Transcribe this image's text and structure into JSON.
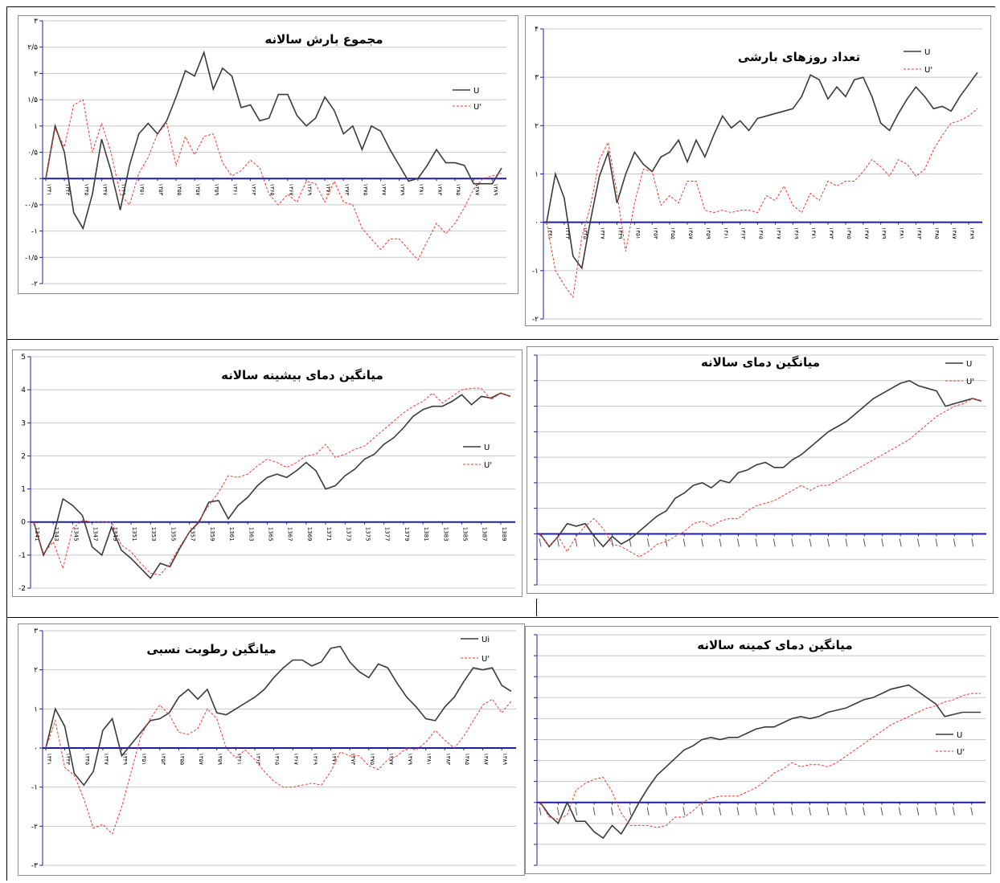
{
  "colors": {
    "u_line": "#3a3a3a",
    "up_line": "#ef3b2c",
    "zero_axis": "#1f1f9e",
    "grid": "#c8c8c8",
    "axis": "#1f1f9e"
  },
  "chart_data": [
    {
      "type": "line",
      "title": "مجموع بارش سالانه",
      "ylim": [
        -2,
        3
      ],
      "yticks": [
        "۳",
        "۲/۵",
        "۲",
        "۱/۵",
        "۱",
        "۰/۵",
        "۰",
        "-۰/۵",
        "-۱",
        "-۱/۵",
        "-۲"
      ],
      "yvalues": [
        3,
        2.5,
        2,
        1.5,
        1,
        0.5,
        0,
        -0.5,
        -1,
        -1.5,
        -2
      ],
      "grid": true,
      "legend_position": "top-right",
      "xticks": [
        "۱۳۴۱",
        "۱۳۴۳",
        "۱۳۴۵",
        "۱۳۴۷",
        "۱۳۴۹",
        "۱۳۵۱",
        "۱۳۵۳",
        "۱۳۵۵",
        "۱۳۵۷",
        "۱۳۵۹",
        "۱۳۶۱",
        "۱۳۶۳",
        "۱۳۶۵",
        "۱۳۶۷",
        "۱۳۶۹",
        "۱۳۷۱",
        "۱۳۷۳",
        "۱۳۷۵",
        "۱۳۷۷",
        "۱۳۷۹",
        "۱۳۸۱",
        "۱۳۸۳",
        "۱۳۸۵",
        "۱۳۸۷",
        "۱۳۸۹"
      ],
      "series": [
        {
          "name": "U",
          "values": [
            0,
            1,
            0.5,
            -0.65,
            -0.95,
            -0.3,
            0.75,
            0.15,
            -0.6,
            0.25,
            0.85,
            1.05,
            0.85,
            1.1,
            1.55,
            2.05,
            1.95,
            2.4,
            1.7,
            2.1,
            1.95,
            1.35,
            1.4,
            1.1,
            1.15,
            1.6,
            1.6,
            1.2,
            1,
            1.15,
            1.55,
            1.3,
            0.85,
            1,
            0.55,
            1,
            0.9,
            0.55,
            0.25,
            -0.05,
            0,
            0.25,
            0.55,
            0.3,
            0.3,
            0.25,
            -0.1,
            -0.1,
            -0.1,
            0.2
          ]
        },
        {
          "name": "U'",
          "values": [
            0,
            0.95,
            0.6,
            1.4,
            1.5,
            0.5,
            1.05,
            0.5,
            -0.3,
            -0.5,
            0.1,
            0.4,
            0.85,
            1.05,
            0.25,
            0.8,
            0.45,
            0.8,
            0.85,
            0.3,
            0.05,
            0.15,
            0.35,
            0.2,
            -0.3,
            -0.5,
            -0.3,
            -0.45,
            -0.05,
            -0.1,
            -0.45,
            -0.05,
            -0.45,
            -0.5,
            -0.95,
            -1.15,
            -1.35,
            -1.15,
            -1.15,
            -1.35,
            -1.55,
            -1.2,
            -0.85,
            -1.05,
            -0.85,
            -0.55,
            -0.2,
            0,
            0.05,
            0.1
          ]
        }
      ]
    },
    {
      "type": "line",
      "title": "تعداد روزهای بارشی",
      "ylim": [
        -2,
        4
      ],
      "yticks": [
        "۴",
        "۳",
        "۲",
        "۱",
        "۰",
        "-۱",
        "-۲"
      ],
      "yvalues": [
        4,
        3,
        2,
        1,
        0,
        -1,
        -2
      ],
      "grid": true,
      "legend_position": "top-right",
      "xticks": [
        "۱۳۴۱",
        "۱۳۴۳",
        "۱۳۴۵",
        "۱۳۴۷",
        "۱۳۴۹",
        "۱۳۵۱",
        "۱۳۵۳",
        "۱۳۵۵",
        "۱۳۵۷",
        "۱۳۵۹",
        "۱۳۶۱",
        "۱۳۶۳",
        "۱۳۶۵",
        "۱۳۶۷",
        "۱۳۶۹",
        "۱۳۷۱",
        "۱۳۷۳",
        "۱۳۷۵",
        "۱۳۷۷",
        "۱۳۷۹",
        "۱۳۸۱",
        "۱۳۸۳",
        "۱۳۸۵",
        "۱۳۸۷",
        "۱۳۸۹"
      ],
      "series": [
        {
          "name": "U",
          "values": [
            0,
            1,
            0.5,
            -0.7,
            -0.95,
            0.05,
            0.95,
            1.45,
            0.4,
            1,
            1.45,
            1.2,
            1.05,
            1.35,
            1.45,
            1.7,
            1.25,
            1.7,
            1.35,
            1.8,
            2.2,
            1.95,
            2.1,
            1.9,
            2.15,
            2.2,
            2.25,
            2.3,
            2.35,
            2.6,
            3.05,
            2.95,
            2.55,
            2.8,
            2.6,
            2.95,
            3,
            2.6,
            2.05,
            1.9,
            2.25,
            2.55,
            2.8,
            2.6,
            2.35,
            2.4,
            2.3,
            2.6,
            2.85,
            3.1
          ]
        },
        {
          "name": "U'",
          "values": [
            0,
            -1,
            -1.3,
            -1.55,
            -0.3,
            0.35,
            1.3,
            1.65,
            0.6,
            -0.6,
            0.4,
            1.1,
            1.05,
            0.35,
            0.55,
            0.4,
            0.85,
            0.85,
            0.25,
            0.2,
            0.25,
            0.2,
            0.25,
            0.25,
            0.2,
            0.55,
            0.45,
            0.75,
            0.35,
            0.2,
            0.6,
            0.45,
            0.85,
            0.75,
            0.85,
            0.85,
            1.05,
            1.3,
            1.15,
            0.95,
            1.3,
            1.2,
            0.95,
            1.1,
            1.5,
            1.8,
            2.05,
            2.1,
            2.2,
            2.35
          ]
        }
      ]
    },
    {
      "type": "line",
      "title": "میانگین دمای بیشینه سالانه",
      "ylim": [
        -2,
        5
      ],
      "yticks": [
        "5",
        "4",
        "3",
        "2",
        "1",
        "0",
        "-1",
        "-2"
      ],
      "yvalues": [
        5,
        4,
        3,
        2,
        1,
        0,
        -1,
        -2
      ],
      "grid": true,
      "legend_position": "right",
      "xticks": [
        "1341",
        "1343",
        "1345",
        "1347",
        "1349",
        "1351",
        "1353",
        "1355",
        "1357",
        "1359",
        "1361",
        "1363",
        "1365",
        "1367",
        "1369",
        "1371",
        "1373",
        "1375",
        "1377",
        "1379",
        "1381",
        "1383",
        "1385",
        "1387",
        "1389"
      ],
      "series": [
        {
          "name": "U",
          "values": [
            0,
            -1,
            -0.45,
            0.7,
            0.5,
            0.2,
            -0.75,
            -1,
            -0.15,
            -0.85,
            -1.1,
            -1.4,
            -1.7,
            -1.25,
            -1.35,
            -0.8,
            -0.3,
            0,
            0.6,
            0.65,
            0.1,
            0.5,
            0.75,
            1.1,
            1.35,
            1.45,
            1.35,
            1.55,
            1.8,
            1.55,
            1,
            1.1,
            1.4,
            1.6,
            1.9,
            2.05,
            2.35,
            2.55,
            2.85,
            3.2,
            3.4,
            3.5,
            3.5,
            3.65,
            3.85,
            3.55,
            3.8,
            3.75,
            3.9,
            3.8
          ]
        },
        {
          "name": "U'",
          "values": [
            0,
            -0.95,
            -0.6,
            -1.4,
            -0.2,
            0.05,
            0,
            0,
            0,
            -0.7,
            -0.9,
            -1.25,
            -1.55,
            -1.6,
            -1.25,
            -0.75,
            -0.3,
            0.05,
            0.5,
            0.9,
            1.4,
            1.35,
            1.45,
            1.7,
            1.9,
            1.8,
            1.65,
            1.8,
            2,
            2.05,
            2.35,
            1.95,
            2.05,
            2.2,
            2.3,
            2.55,
            2.8,
            3.05,
            3.3,
            3.5,
            3.65,
            3.9,
            3.6,
            3.8,
            4,
            4.05,
            4.05,
            3.7,
            3.9,
            3.8
          ]
        }
      ]
    },
    {
      "type": "line",
      "title": "میانگین دمای سالانه",
      "ylim": [
        -1,
        3.5
      ],
      "yticks": [],
      "yvalues": [
        3.5,
        3,
        2.5,
        2,
        1.5,
        1,
        0.5,
        0,
        -0.5,
        -1
      ],
      "grid": true,
      "legend_position": "top-right",
      "xticks": [],
      "series": [
        {
          "name": "U",
          "values": [
            0,
            -0.25,
            -0.05,
            0.2,
            0.15,
            0.2,
            -0.05,
            -0.25,
            -0.05,
            -0.2,
            -0.1,
            0.05,
            0.2,
            0.35,
            0.45,
            0.7,
            0.8,
            0.95,
            1,
            0.9,
            1.05,
            1,
            1.2,
            1.25,
            1.35,
            1.4,
            1.3,
            1.3,
            1.45,
            1.55,
            1.7,
            1.85,
            2,
            2.1,
            2.2,
            2.35,
            2.5,
            2.65,
            2.75,
            2.85,
            2.95,
            3,
            2.9,
            2.85,
            2.8,
            2.5,
            2.55,
            2.6,
            2.65,
            2.6
          ]
        },
        {
          "name": "U'",
          "values": [
            0,
            -0.25,
            -0.05,
            -0.35,
            -0.05,
            0.15,
            0.3,
            0.1,
            -0.2,
            -0.25,
            -0.35,
            -0.45,
            -0.35,
            -0.2,
            -0.15,
            -0.05,
            0.05,
            0.2,
            0.25,
            0.15,
            0.25,
            0.3,
            0.3,
            0.45,
            0.55,
            0.6,
            0.65,
            0.75,
            0.85,
            0.95,
            0.85,
            0.95,
            0.95,
            1.05,
            1.15,
            1.25,
            1.35,
            1.45,
            1.55,
            1.65,
            1.75,
            1.85,
            2,
            2.15,
            2.3,
            2.4,
            2.5,
            2.55,
            2.65,
            2.6
          ]
        }
      ]
    },
    {
      "type": "line",
      "title": "میانگین رطوبت نسبی",
      "ylim": [
        -3,
        3
      ],
      "yticks": [
        "۳",
        "۲",
        "۱",
        "۰",
        "-۱",
        "-۲",
        "-۳"
      ],
      "yvalues": [
        3,
        2,
        1,
        0,
        -1,
        -2,
        -3
      ],
      "grid": true,
      "legend_position": "top-right",
      "xticks": [
        "۱۳۴۱",
        "۱۳۴۳",
        "۱۳۴۵",
        "۱۳۴۷",
        "۱۳۴۹",
        "۱۳۵۱",
        "۱۳۵۳",
        "۱۳۵۵",
        "۱۳۵۷",
        "۱۳۵۹",
        "۱۳۶۱",
        "۱۳۶۳",
        "۱۳۶۵",
        "۱۳۶۷",
        "۱۳۶۹",
        "۱۳۷۱",
        "۱۳۷۳",
        "۱۳۷۵",
        "۱۳۷۷",
        "۱۳۷۹",
        "۱۳۸۱",
        "۱۳۸۳",
        "۱۳۸۵",
        "۱۳۸۷",
        "۱۳۸۹"
      ],
      "series": [
        {
          "name": "Ui",
          "values": [
            0,
            1,
            0.55,
            -0.65,
            -0.95,
            -0.6,
            0.45,
            0.75,
            -0.2,
            0.1,
            0.4,
            0.7,
            0.75,
            0.9,
            1.3,
            1.5,
            1.25,
            1.5,
            0.9,
            0.85,
            1,
            1.15,
            1.3,
            1.5,
            1.8,
            2.05,
            2.25,
            2.25,
            2.1,
            2.2,
            2.55,
            2.6,
            2.2,
            1.95,
            1.8,
            2.15,
            2.05,
            1.65,
            1.3,
            1.05,
            0.75,
            0.7,
            1.05,
            1.3,
            1.7,
            2.05,
            2,
            2.05,
            1.6,
            1.45
          ]
        },
        {
          "name": "U'",
          "values": [
            0,
            0.7,
            -0.5,
            -0.7,
            -1.3,
            -2.05,
            -1.95,
            -2.2,
            -1.5,
            -0.6,
            0.3,
            0.75,
            1.1,
            0.85,
            0.4,
            0.35,
            0.5,
            1,
            0.75,
            0,
            -0.25,
            -0.05,
            -0.3,
            -0.6,
            -0.85,
            -1,
            -1,
            -0.95,
            -0.9,
            -0.95,
            -0.6,
            -0.1,
            -0.2,
            -0.2,
            -0.45,
            -0.55,
            -0.3,
            -0.2,
            0,
            -0.05,
            0.15,
            0.45,
            0.2,
            0,
            0.3,
            0.7,
            1.1,
            1.25,
            0.9,
            1.2
          ]
        }
      ]
    },
    {
      "type": "line",
      "title": "میانگین دمای کمینه سالانه",
      "ylim": [
        -1.5,
        4
      ],
      "yticks": [],
      "yvalues": [
        4,
        3.5,
        3,
        2.5,
        2,
        1.5,
        1,
        0.5,
        0,
        -0.5,
        -1,
        -1.5
      ],
      "grid": true,
      "legend_position": "right",
      "xticks": [],
      "series": [
        {
          "name": "U",
          "values": [
            0,
            -0.3,
            -0.5,
            0,
            -0.45,
            -0.45,
            -0.7,
            -0.85,
            -0.55,
            -0.75,
            -0.4,
            0,
            0.35,
            0.65,
            0.85,
            1.05,
            1.25,
            1.35,
            1.5,
            1.55,
            1.5,
            1.55,
            1.55,
            1.65,
            1.75,
            1.8,
            1.8,
            1.9,
            2,
            2.05,
            2,
            2.05,
            2.15,
            2.2,
            2.25,
            2.35,
            2.45,
            2.5,
            2.6,
            2.7,
            2.75,
            2.8,
            2.65,
            2.5,
            2.35,
            2.05,
            2.1,
            2.15,
            2.15,
            2.15
          ]
        },
        {
          "name": "U'",
          "values": [
            0,
            -0.35,
            -0.4,
            -0.3,
            0.3,
            0.45,
            0.55,
            0.6,
            0.25,
            -0.25,
            -0.55,
            -0.55,
            -0.55,
            -0.6,
            -0.55,
            -0.35,
            -0.35,
            -0.2,
            0,
            0.1,
            0.15,
            0.15,
            0.15,
            0.25,
            0.35,
            0.5,
            0.7,
            0.8,
            0.95,
            0.85,
            0.9,
            0.9,
            0.85,
            0.95,
            1.1,
            1.25,
            1.4,
            1.55,
            1.7,
            1.85,
            1.95,
            2.05,
            2.15,
            2.25,
            2.3,
            2.4,
            2.45,
            2.55,
            2.6,
            2.6
          ]
        }
      ]
    }
  ]
}
